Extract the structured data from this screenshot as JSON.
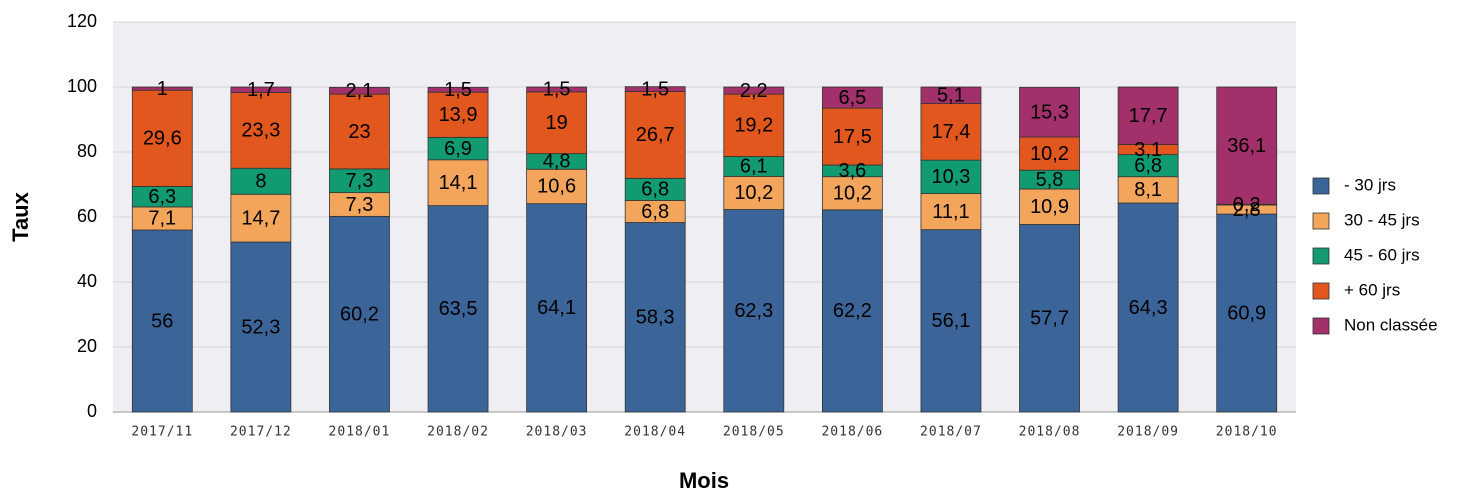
{
  "chart_data": {
    "type": "stacked_bar",
    "x_label": "Mois",
    "y_label": "Taux",
    "categories": [
      "2017/11",
      "2017/12",
      "2018/01",
      "2018/02",
      "2018/03",
      "2018/04",
      "2018/05",
      "2018/06",
      "2018/07",
      "2018/08",
      "2018/09",
      "2018/10"
    ],
    "series": [
      {
        "name": "- 30 jrs",
        "color": "#3b6599",
        "values": [
          56,
          52.3,
          60.2,
          63.5,
          64.1,
          58.3,
          62.3,
          62.2,
          56.1,
          57.7,
          64.3,
          60.9
        ],
        "value_labels": [
          "56",
          "52,3",
          "60,2",
          "63,5",
          "64,1",
          "58,3",
          "62,3",
          "62,2",
          "56,1",
          "57,7",
          "64,3",
          "60,9"
        ]
      },
      {
        "name": "30 - 45 jrs",
        "color": "#f3a55c",
        "values": [
          7.1,
          14.7,
          7.3,
          14.1,
          10.6,
          6.8,
          10.2,
          10.2,
          11.1,
          10.9,
          8.1,
          2.8
        ],
        "value_labels": [
          "7,1",
          "14,7",
          "7,3",
          "14,1",
          "10,6",
          "6,8",
          "10,2",
          "10,2",
          "11,1",
          "10,9",
          "8,1",
          "2,8"
        ]
      },
      {
        "name": "45 - 60 jrs",
        "color": "#129a70",
        "values": [
          6.3,
          8,
          7.3,
          6.9,
          4.8,
          6.8,
          6.1,
          3.6,
          10.3,
          5.8,
          6.8,
          null
        ],
        "value_labels": [
          "6,3",
          "8",
          "7,3",
          "6,9",
          "4,8",
          "6,8",
          "6,1",
          "3,6",
          "10,3",
          "5,8",
          "6,8",
          null
        ]
      },
      {
        "name": "+ 60 jrs",
        "color": "#e2571e",
        "values": [
          29.6,
          23.3,
          23,
          13.9,
          19,
          26.7,
          19.2,
          17.5,
          17.4,
          10.2,
          3.1,
          0.2
        ],
        "value_labels": [
          "29,6",
          "23,3",
          "23",
          "13,9",
          "19",
          "26,7",
          "19,2",
          "17,5",
          "17,4",
          "10,2",
          "3,1",
          "0,2"
        ]
      },
      {
        "name": "Non classée",
        "color": "#a2306b",
        "values": [
          1,
          1.7,
          2.1,
          1.5,
          1.5,
          1.5,
          2.2,
          6.5,
          5.1,
          15.3,
          17.7,
          36.1
        ],
        "value_labels": [
          "1",
          "1,7",
          "2,1",
          "1,5",
          "1,5",
          "1,5",
          "2,2",
          "6,5",
          "5,1",
          "15,3",
          "17,7",
          "36,1"
        ]
      }
    ],
    "ylim": [
      0,
      120
    ],
    "yticks": [
      0,
      20,
      40,
      60,
      80,
      100,
      120
    ],
    "grid": true,
    "legend": "right"
  }
}
